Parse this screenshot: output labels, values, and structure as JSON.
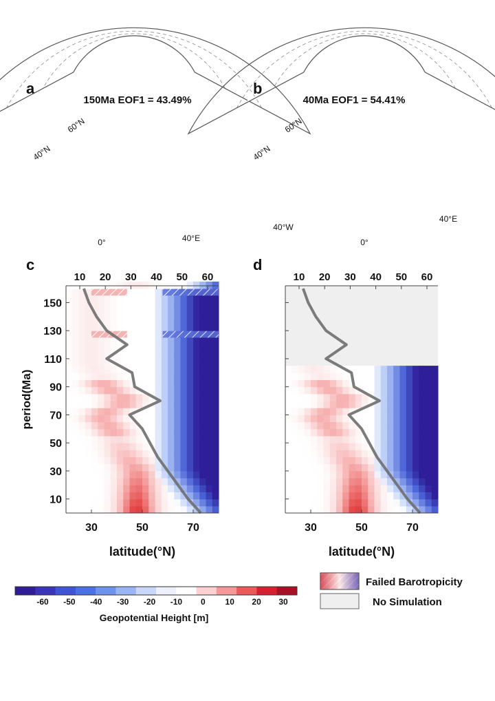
{
  "panels": {
    "a": {
      "letter": "a",
      "title": "150Ma  EOF1 = 43.49%",
      "lat_labels": [
        "60°N",
        "40°N"
      ],
      "lon_labels": [
        "0°",
        "40°E"
      ]
    },
    "b": {
      "letter": "b",
      "title": "40Ma  EOF1 = 54.41%",
      "lat_labels": [
        "60°N",
        "40°N"
      ],
      "lon_labels": [
        "40°W",
        "0°",
        "40°E"
      ]
    },
    "c": {
      "letter": "c"
    },
    "d": {
      "letter": "d"
    }
  },
  "colorbar": {
    "label": "Geopotential Height [m]",
    "ticks": [
      "-60",
      "-50",
      "-40",
      "-30",
      "-20",
      "-10",
      "0",
      "10",
      "20",
      "30"
    ],
    "colors": [
      "#2e1d96",
      "#3a35b8",
      "#3f55d4",
      "#4b72e4",
      "#6e93ee",
      "#9ab4f4",
      "#c8d6f8",
      "#eef1fb",
      "#ffffff",
      "#fcd0d0",
      "#f49898",
      "#ea5a5a",
      "#d42030",
      "#a81026"
    ]
  },
  "legend": {
    "failed": "Failed Barotropicity",
    "nosim": "No Simulation"
  },
  "chart_data": [
    {
      "type": "heatmap",
      "panel": "c",
      "xlabel": "latitude(°N)",
      "ylabel": "period(Ma)",
      "x_ticks_bottom": [
        30,
        50,
        70
      ],
      "x_ticks_top": [
        10,
        20,
        30,
        40,
        50,
        60
      ],
      "y_ticks": [
        10,
        30,
        50,
        70,
        90,
        110,
        130,
        150
      ],
      "xlim": [
        20,
        80
      ],
      "ylim": [
        0,
        162
      ],
      "jet_latitude_line": {
        "period": [
          0,
          10,
          20,
          30,
          40,
          50,
          60,
          70,
          80,
          90,
          100,
          110,
          120,
          130,
          140,
          150,
          160
        ],
        "latitude": [
          73,
          68,
          64,
          60,
          56,
          53,
          50,
          45,
          57,
          47,
          46,
          36,
          44,
          36,
          32,
          29,
          27
        ]
      },
      "failed_barotropicity_periods": [
        130,
        160
      ]
    },
    {
      "type": "heatmap",
      "panel": "d",
      "xlabel": "latitude(°N)",
      "x_ticks_bottom": [
        30,
        50,
        70
      ],
      "x_ticks_top": [
        10,
        20,
        30,
        40,
        50,
        60
      ],
      "xlim": [
        20,
        80
      ],
      "ylim": [
        0,
        162
      ],
      "simulated_periods": [
        0,
        10,
        20,
        30,
        40,
        50,
        60,
        70,
        80,
        90,
        100
      ],
      "jet_latitude_line": {
        "period": [
          0,
          10,
          20,
          30,
          40,
          50,
          60,
          70,
          80,
          90,
          100,
          110,
          120,
          130,
          140,
          150,
          160
        ],
        "latitude": [
          73,
          68,
          64,
          60,
          56,
          53,
          50,
          45,
          57,
          47,
          46,
          36,
          44,
          36,
          32,
          29,
          27
        ]
      }
    }
  ]
}
